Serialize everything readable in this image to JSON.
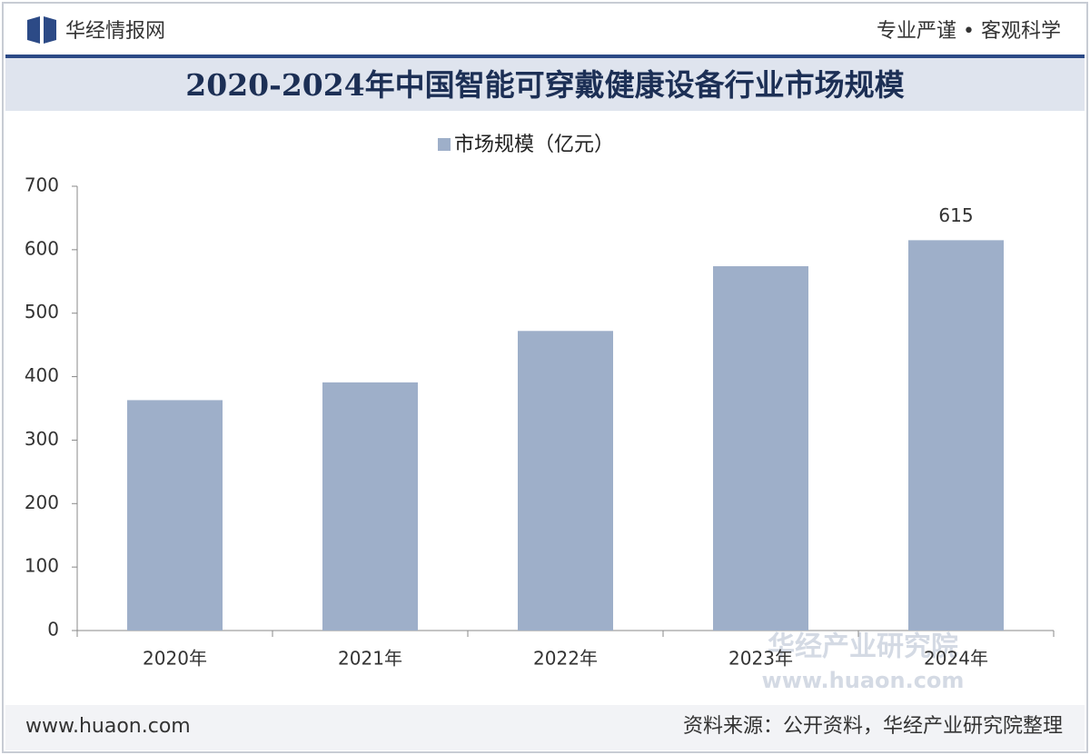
{
  "header": {
    "brand": "华经情报网",
    "slogan": "专业严谨 • 客观科学"
  },
  "footer": {
    "url": "www.huaon.com",
    "source": "资料来源：公开资料，华经产业研究院整理",
    "watermark": "华经产业研究院"
  },
  "chart_data": {
    "type": "bar",
    "title": "2020-2024年中国智能可穿戴健康设备行业市场规模",
    "categories": [
      "2020年",
      "2021年",
      "2022年",
      "2023年",
      "2024年"
    ],
    "series": [
      {
        "name": "市场规模（亿元）",
        "color": "#9eafc9",
        "values": [
          363,
          391,
          472,
          574,
          615
        ],
        "value_labels": [
          null,
          null,
          null,
          null,
          "615"
        ]
      }
    ],
    "ylim": [
      0,
      700
    ],
    "yticks": [
      0,
      100,
      200,
      300,
      400,
      500,
      600,
      700
    ],
    "grid": false,
    "legend": "top"
  }
}
